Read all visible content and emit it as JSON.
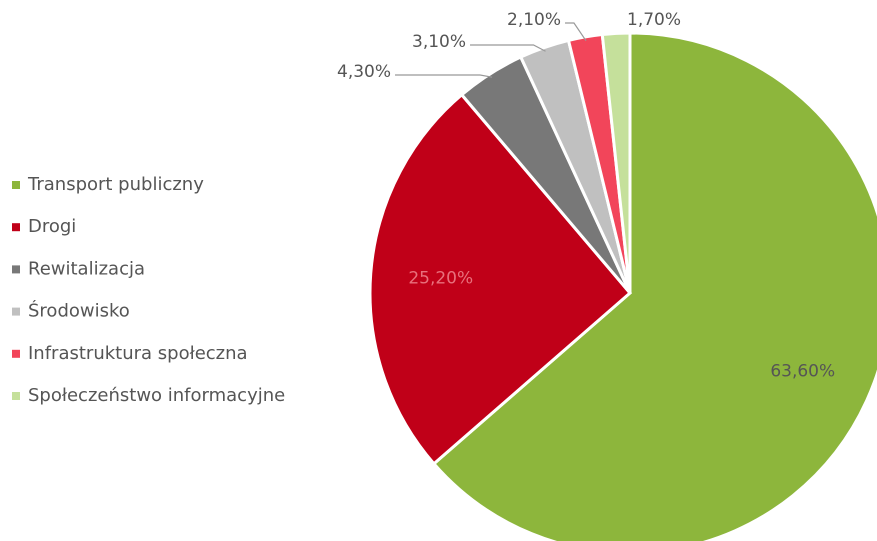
{
  "chart_data": {
    "type": "pie",
    "categories": [
      "Transport publiczny",
      "Drogi",
      "Rewitalizacja",
      "Środowisko",
      "Infrastruktura społeczna",
      "Społeczeństwo informacyjne"
    ],
    "values": [
      63.6,
      25.2,
      4.3,
      3.1,
      2.1,
      1.7
    ],
    "value_labels": [
      "63,60%",
      "25,20%",
      "4,30%",
      "3,10%",
      "2,10%",
      "1,70%"
    ],
    "colors": [
      "#8db63c",
      "#c00018",
      "#787878",
      "#c0c0c0",
      "#f2455a",
      "#c5e09b"
    ],
    "legend": "left"
  }
}
